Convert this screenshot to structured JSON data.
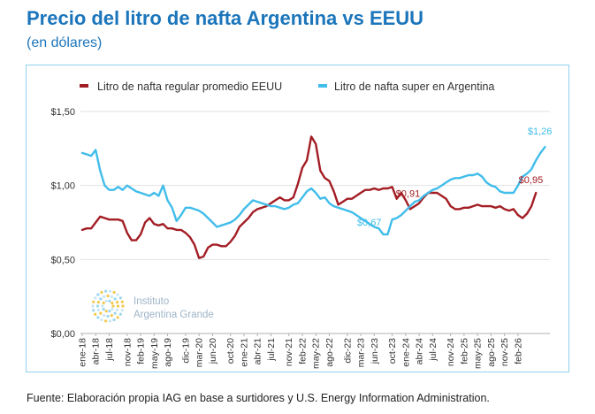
{
  "title": "Precio del litro de nafta Argentina vs EEUU",
  "subtitle": "(en dólares)",
  "source": "Fuente: Elaboración propia IAG en base a surtidores y U.S. Energy Information Administration.",
  "logo": {
    "line1": "Instituto",
    "line2": "Argentina Grande"
  },
  "colors": {
    "usa": "#a31d24",
    "arg": "#41bdea",
    "title": "#1b75bb",
    "frame": "#8fd0ee"
  },
  "chart_data": {
    "type": "line",
    "x_start": "ene-18",
    "x_step_months": 1,
    "ylim": [
      0,
      1.5
    ],
    "yticks": [
      {
        "value": 0,
        "label": "$0,00"
      },
      {
        "value": 0.5,
        "label": "$0,50"
      },
      {
        "value": 1.0,
        "label": "$1,00"
      },
      {
        "value": 1.5,
        "label": "$1,50"
      }
    ],
    "xtick_labels": [
      "ene-18",
      "abr-18",
      "jul-18",
      "nov-18",
      "feb-19",
      "may-19",
      "ago-19",
      "dic-19",
      "mar-20",
      "jun-20",
      "oct-20",
      "ene-21",
      "abr-21",
      "jul-21",
      "nov-21",
      "feb-22",
      "may-22",
      "ago-22",
      "dic-22",
      "mar-23",
      "jun-23",
      "oct-23",
      "ene-24",
      "abr-24",
      "jul-24",
      "nov-24",
      "feb-25",
      "may-25",
      "ago-25",
      "nov-25",
      "feb-26"
    ],
    "legend_position": "top",
    "series": [
      {
        "name": "Litro de nafta regular promedio EEUU",
        "color": "#a31d24",
        "values": [
          0.7,
          0.71,
          0.71,
          0.75,
          0.79,
          0.78,
          0.77,
          0.77,
          0.77,
          0.76,
          0.68,
          0.63,
          0.63,
          0.67,
          0.75,
          0.78,
          0.74,
          0.73,
          0.74,
          0.71,
          0.71,
          0.7,
          0.7,
          0.68,
          0.65,
          0.6,
          0.51,
          0.52,
          0.58,
          0.6,
          0.6,
          0.59,
          0.59,
          0.62,
          0.66,
          0.72,
          0.75,
          0.78,
          0.82,
          0.84,
          0.85,
          0.86,
          0.88,
          0.9,
          0.92,
          0.9,
          0.9,
          0.92,
          1.01,
          1.12,
          1.17,
          1.33,
          1.28,
          1.1,
          1.05,
          1.03,
          0.96,
          0.87,
          0.89,
          0.91,
          0.91,
          0.93,
          0.95,
          0.97,
          0.97,
          0.98,
          0.97,
          0.98,
          0.98,
          0.99,
          0.91,
          0.95,
          0.9,
          0.84,
          0.86,
          0.88,
          0.92,
          0.95,
          0.95,
          0.95,
          0.93,
          0.91,
          0.86,
          0.84,
          0.84,
          0.85,
          0.85,
          0.86,
          0.87,
          0.86,
          0.86,
          0.86,
          0.85,
          0.86,
          0.84,
          0.83,
          0.84,
          0.8,
          0.78,
          0.81,
          0.86,
          0.95
        ],
        "annotation": {
          "label": "$0,91",
          "index": 70
        },
        "end_label": "$0,95"
      },
      {
        "name": "Litro de nafta super en Argentina",
        "color": "#41bdea",
        "values": [
          1.22,
          1.21,
          1.2,
          1.24,
          1.1,
          1.0,
          0.97,
          0.97,
          0.99,
          0.97,
          1.0,
          0.98,
          0.96,
          0.95,
          0.94,
          0.93,
          0.95,
          0.93,
          1.0,
          0.9,
          0.85,
          0.76,
          0.8,
          0.85,
          0.85,
          0.84,
          0.83,
          0.81,
          0.78,
          0.75,
          0.72,
          0.73,
          0.74,
          0.75,
          0.77,
          0.8,
          0.84,
          0.87,
          0.9,
          0.89,
          0.88,
          0.87,
          0.86,
          0.86,
          0.85,
          0.84,
          0.85,
          0.87,
          0.88,
          0.92,
          0.96,
          0.98,
          0.95,
          0.91,
          0.92,
          0.88,
          0.86,
          0.85,
          0.84,
          0.83,
          0.82,
          0.8,
          0.78,
          0.76,
          0.74,
          0.72,
          0.71,
          0.67,
          0.67,
          0.77,
          0.78,
          0.8,
          0.83,
          0.86,
          0.89,
          0.9,
          0.93,
          0.95,
          0.97,
          0.98,
          1.0,
          1.02,
          1.04,
          1.05,
          1.05,
          1.06,
          1.07,
          1.07,
          1.08,
          1.06,
          1.02,
          1.0,
          0.99,
          0.96,
          0.95,
          0.95,
          0.95,
          1.0,
          1.06,
          1.08,
          1.11,
          1.17,
          1.22,
          1.26
        ],
        "annotation": {
          "label": "$0,67",
          "index": 67
        },
        "end_label": "$1,26"
      }
    ]
  }
}
